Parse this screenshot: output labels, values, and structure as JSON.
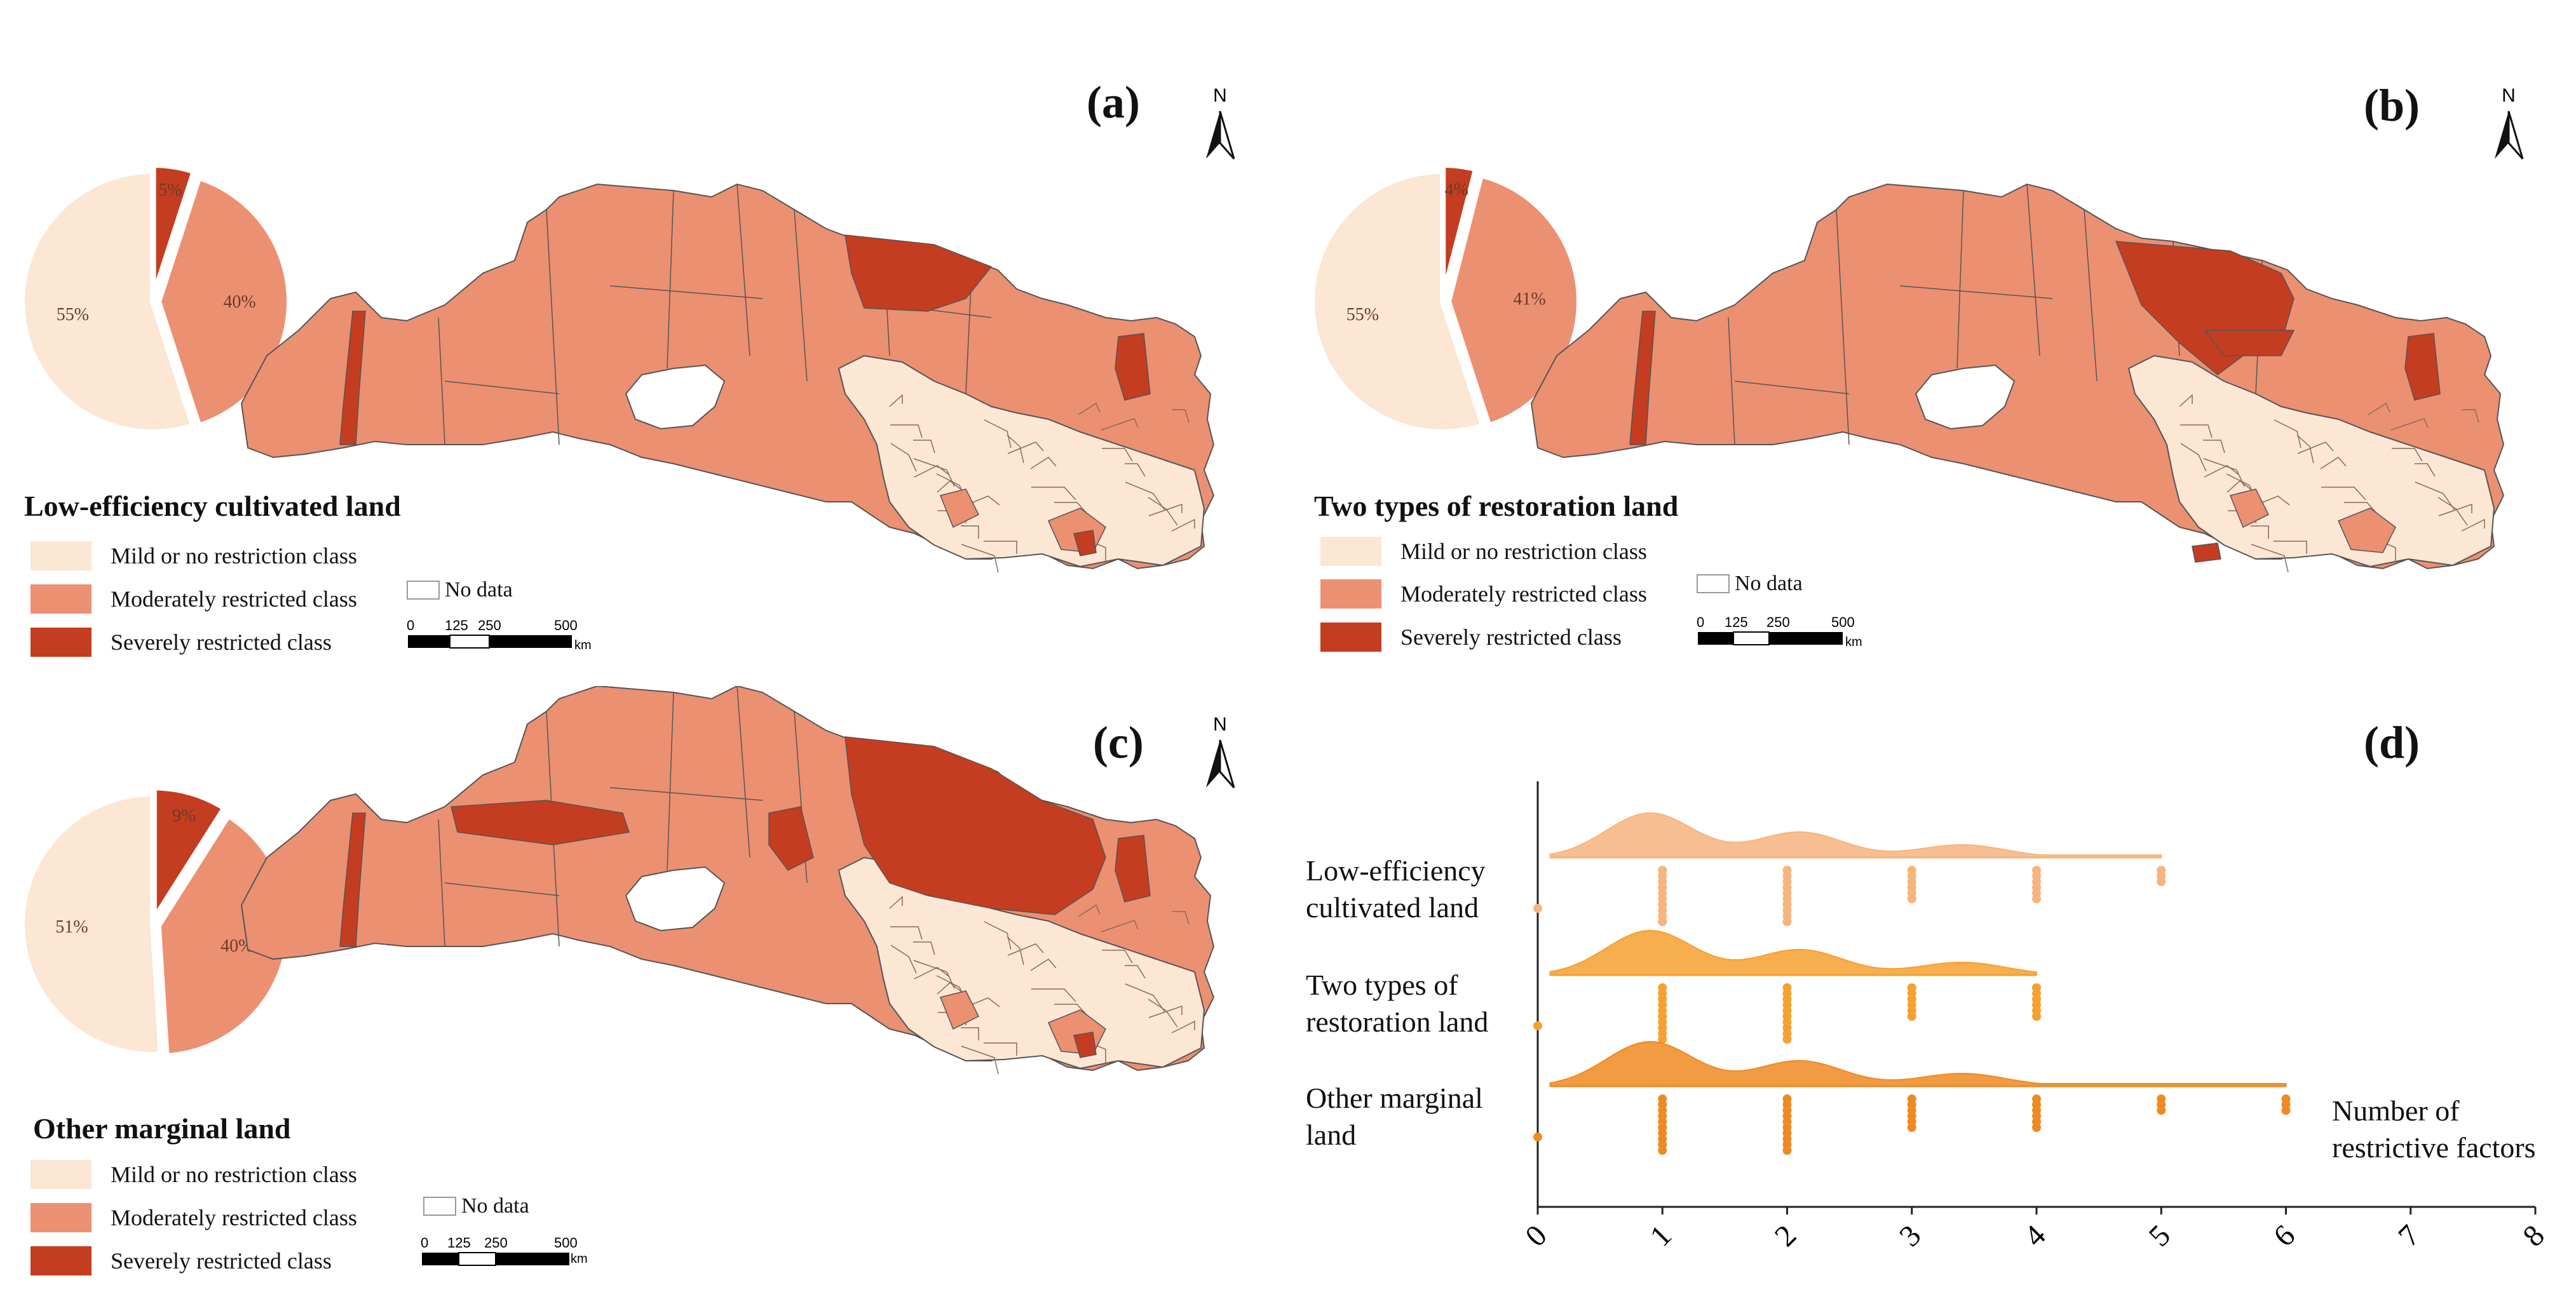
{
  "colors": {
    "mild": "#fce6d4",
    "moderate": "#ec9072",
    "severe": "#c43d20",
    "border": "#555555",
    "nodata": "#ffffff"
  },
  "legend": {
    "mild": "Mild or no restriction class",
    "moderate": "Moderately restricted class",
    "severe": "Severely restricted class",
    "nodata": "No data"
  },
  "scale": {
    "ticks": [
      "0",
      "125",
      "250",
      "500"
    ],
    "unit": "km"
  },
  "north": "N",
  "panels": [
    {
      "id": "a",
      "label": "(a)",
      "title": "Low-efficiency cultivated land",
      "pie": {
        "mild": 55,
        "moderate": 40,
        "severe": 5
      },
      "pie_labels": {
        "mild": "55%",
        "moderate": "40%",
        "severe": "5%"
      }
    },
    {
      "id": "b",
      "label": "(b)",
      "title": "Two types of restoration land",
      "pie": {
        "mild": 55,
        "moderate": 41,
        "severe": 4
      },
      "pie_labels": {
        "mild": "55%",
        "moderate": "41%",
        "severe": "4%"
      }
    },
    {
      "id": "c",
      "label": "(c)",
      "title": "Other marginal land",
      "pie": {
        "mild": 51,
        "moderate": 40,
        "severe": 9
      },
      "pie_labels": {
        "mild": "51%",
        "moderate": "40%",
        "severe": "9%"
      }
    }
  ],
  "chart_d": {
    "label": "(d)",
    "xlabel_line1": "Number of",
    "xlabel_line2": "restrictive factors",
    "x_ticks": [
      "0",
      "1",
      "2",
      "3",
      "4",
      "5",
      "6",
      "7",
      "8"
    ],
    "series_labels": [
      [
        "Low-efficiency",
        "cultivated land"
      ],
      [
        "Two types of",
        "restoration land"
      ],
      [
        "Other marginal",
        "land"
      ]
    ]
  },
  "chart_data": {
    "type": "raincloud",
    "xlabel": "Number of restrictive factors",
    "xlim": [
      0,
      8
    ],
    "series": [
      {
        "name": "Low-efficiency cultivated land",
        "color": "#f6b47e",
        "max": 5,
        "values_observed": [
          0,
          1,
          2,
          3,
          4,
          5
        ]
      },
      {
        "name": "Two types of restoration land",
        "color": "#f6a030",
        "max": 4,
        "values_observed": [
          0,
          1,
          2,
          3,
          4
        ]
      },
      {
        "name": "Other marginal land",
        "color": "#ef8a22",
        "max": 6,
        "values_observed": [
          0,
          1,
          2,
          3,
          4,
          5,
          6
        ]
      }
    ]
  }
}
